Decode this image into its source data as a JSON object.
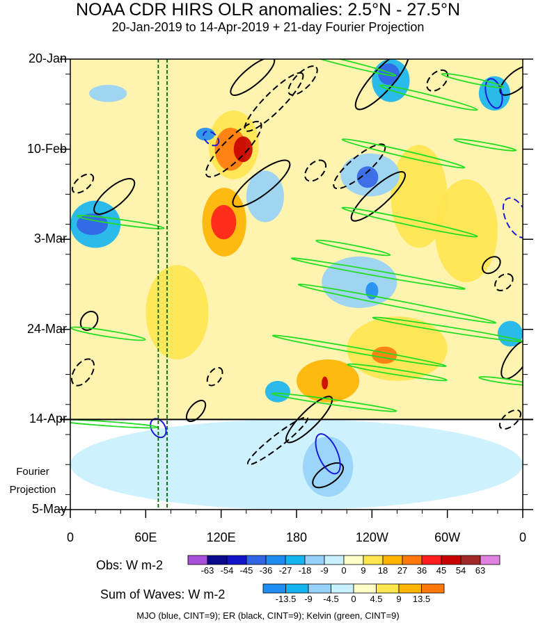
{
  "title": "NOAA CDR HIRS OLR anomalies: 2.5°N - 27.5°N",
  "subtitle": "20-Jan-2019 to 14-Apr-2019 + 21-day Fourier Projection",
  "projection_label_line1": "Fourier",
  "projection_label_line2": "Projection",
  "obs_label": "Obs: W m-2",
  "waves_label": "Sum of Waves: W m-2",
  "footnote": "MJO (blue, CINT=9); ER (black, CINT=9); Kelvin (green, CINT=9)",
  "colors": {
    "mjo": "#1a1ad8",
    "er": "#000000",
    "kelvin": "#22dd22",
    "guide_lines": "#006400"
  },
  "obs_colorbar": {
    "labels": [
      "-63",
      "-54",
      "-45",
      "-36",
      "-27",
      "-18",
      "-9",
      "0",
      "9",
      "18",
      "27",
      "36",
      "45",
      "54",
      "63"
    ],
    "colors": [
      "#a850d8",
      "#0a0a8c",
      "#1414c8",
      "#3264e6",
      "#1e8cf0",
      "#14b4f0",
      "#96d2fa",
      "#c8f0ff",
      "#ffffc8",
      "#ffe650",
      "#ffb400",
      "#ff780a",
      "#ff1e1e",
      "#c80000",
      "#a02828",
      "#e080e0"
    ]
  },
  "waves_colorbar": {
    "labels": [
      "-13.5",
      "-9",
      "-4.5",
      "0",
      "4.5",
      "9",
      "13.5"
    ],
    "colors": [
      "#1e8cf0",
      "#14b4f0",
      "#96d2fa",
      "#c8f0ff",
      "#ffffc8",
      "#ffe650",
      "#ffb400",
      "#ff780a"
    ]
  },
  "chart_data": {
    "type": "heatmap",
    "title": "NOAA CDR HIRS OLR anomalies: 2.5°N - 27.5°N",
    "subtitle": "20-Jan-2019 to 14-Apr-2019 + 21-day Fourier Projection",
    "x_ticks": [
      "0",
      "60E",
      "120E",
      "180",
      "120W",
      "60W",
      "0"
    ],
    "x_tick_longitudes": [
      0,
      60,
      120,
      180,
      240,
      300,
      360
    ],
    "y_ticks": [
      "20-Jan",
      "10-Feb",
      "3-Mar",
      "24-Mar",
      "14-Apr",
      "5-May"
    ],
    "y_tick_days": [
      0,
      21,
      42,
      63,
      84,
      105
    ],
    "xlim": [
      0,
      360
    ],
    "ylim_days": [
      0,
      105
    ],
    "projection_start_day": 84,
    "guide_longitudes": [
      70,
      77
    ],
    "obs_levels": [
      -63,
      -54,
      -45,
      -36,
      -27,
      -18,
      -9,
      0,
      9,
      18,
      27,
      36,
      45,
      54,
      63
    ],
    "wave_levels": [
      -13.5,
      -9,
      -4.5,
      0,
      4.5,
      9,
      13.5
    ],
    "anomaly_cells": [
      {
        "lon": [
          130,
          145
        ],
        "day": [
          18,
          24
        ],
        "v": 45
      },
      {
        "lon": [
          115,
          140
        ],
        "day": [
          16,
          26
        ],
        "v": 27
      },
      {
        "lon": [
          110,
          150
        ],
        "day": [
          12,
          28
        ],
        "v": 15
      },
      {
        "lon": [
          112,
          132
        ],
        "day": [
          34,
          42
        ],
        "v": 40
      },
      {
        "lon": [
          105,
          140
        ],
        "day": [
          30,
          46
        ],
        "v": 22
      },
      {
        "lon": [
          200,
          205
        ],
        "day": [
          74,
          77
        ],
        "v": 50
      },
      {
        "lon": [
          180,
          230
        ],
        "day": [
          70,
          80
        ],
        "v": 25
      },
      {
        "lon": [
          240,
          260
        ],
        "day": [
          67,
          71
        ],
        "v": 30
      },
      {
        "lon": [
          220,
          300
        ],
        "day": [
          60,
          75
        ],
        "v": 15
      },
      {
        "lon": [
          290,
          340
        ],
        "day": [
          28,
          52
        ],
        "v": 15
      },
      {
        "lon": [
          60,
          110
        ],
        "day": [
          48,
          70
        ],
        "v": 12
      },
      {
        "lon": [
          255,
          300
        ],
        "day": [
          20,
          44
        ],
        "v": 12
      },
      {
        "lon": [
          5,
          30
        ],
        "day": [
          36,
          41
        ],
        "v": -45
      },
      {
        "lon": [
          0,
          40
        ],
        "day": [
          33,
          44
        ],
        "v": -20
      },
      {
        "lon": [
          245,
          262
        ],
        "day": [
          1,
          6
        ],
        "v": -45
      },
      {
        "lon": [
          240,
          270
        ],
        "day": [
          0,
          10
        ],
        "v": -20
      },
      {
        "lon": [
          228,
          245
        ],
        "day": [
          25,
          30
        ],
        "v": -40
      },
      {
        "lon": [
          215,
          262
        ],
        "day": [
          22,
          32
        ],
        "v": -18
      },
      {
        "lon": [
          235,
          245
        ],
        "day": [
          52,
          56
        ],
        "v": -36
      },
      {
        "lon": [
          200,
          260
        ],
        "day": [
          46,
          58
        ],
        "v": -15
      },
      {
        "lon": [
          340,
          360
        ],
        "day": [
          61,
          67
        ],
        "v": -27
      },
      {
        "lon": [
          325,
          350
        ],
        "day": [
          4,
          12
        ],
        "v": -20
      },
      {
        "lon": [
          140,
          170
        ],
        "day": [
          26,
          38
        ],
        "v": -18
      },
      {
        "lon": [
          155,
          175
        ],
        "day": [
          75,
          80
        ],
        "v": -22
      },
      {
        "lon": [
          15,
          45
        ],
        "day": [
          6,
          10
        ],
        "v": -18
      },
      {
        "lon": [
          100,
          115
        ],
        "day": [
          16,
          19
        ],
        "v": -30
      },
      {
        "lon": [
          185,
          225
        ],
        "day": [
          88,
          102
        ],
        "v": -12
      },
      {
        "lon": [
          0,
          360
        ],
        "day": [
          84,
          105
        ],
        "v": -4
      }
    ],
    "mjo_contours": [
      {
        "cx": 112,
        "cy": 18.5,
        "rx": 7,
        "ry": 1.3,
        "a": 40,
        "dash": true
      },
      {
        "cx": 337,
        "cy": 8,
        "rx": 12,
        "ry": 1.8,
        "a": 75,
        "dash": false
      },
      {
        "cx": 355,
        "cy": 37,
        "rx": 17,
        "ry": 2.5,
        "a": 65,
        "dash": true
      },
      {
        "cx": 205,
        "cy": 92,
        "rx": 17,
        "ry": 2.2,
        "a": 66,
        "dash": false
      },
      {
        "cx": 70,
        "cy": 86,
        "rx": 8,
        "ry": 1.6,
        "a": 60,
        "dash": false
      }
    ],
    "er_contours": [
      {
        "cx": 152,
        "cy": 29,
        "rx": 28,
        "ry": 2.5,
        "a": -38,
        "dash": false
      },
      {
        "cx": 130,
        "cy": 21,
        "rx": 30,
        "ry": 2.5,
        "a": -45,
        "dash": true
      },
      {
        "cx": 162,
        "cy": 10,
        "rx": 32,
        "ry": 2.2,
        "a": -45,
        "dash": true
      },
      {
        "cx": 145,
        "cy": 4,
        "rx": 22,
        "ry": 2.0,
        "a": -40,
        "dash": false
      },
      {
        "cx": 35,
        "cy": 32,
        "rx": 20,
        "ry": 2.2,
        "a": -40,
        "dash": false
      },
      {
        "cx": 248,
        "cy": 5,
        "rx": 30,
        "ry": 2.5,
        "a": -48,
        "dash": false
      },
      {
        "cx": 230,
        "cy": 25,
        "rx": 26,
        "ry": 2.2,
        "a": -40,
        "dash": true
      },
      {
        "cx": 245,
        "cy": 32,
        "rx": 28,
        "ry": 2.2,
        "a": -42,
        "dash": false
      },
      {
        "cx": 195,
        "cy": 26,
        "rx": 10,
        "ry": 1.8,
        "a": -45,
        "dash": true
      },
      {
        "cx": 355,
        "cy": 5,
        "rx": 16,
        "ry": 2.0,
        "a": -40,
        "dash": false
      },
      {
        "cx": 292,
        "cy": 5,
        "rx": 10,
        "ry": 1.8,
        "a": -45,
        "dash": true
      },
      {
        "cx": 355,
        "cy": 70,
        "rx": 18,
        "ry": 2.2,
        "a": -55,
        "dash": false
      },
      {
        "cx": 335,
        "cy": 48,
        "rx": 8,
        "ry": 1.6,
        "a": -40,
        "dash": false
      },
      {
        "cx": 345,
        "cy": 52,
        "rx": 8,
        "ry": 1.6,
        "a": -40,
        "dash": true
      },
      {
        "cx": 190,
        "cy": 84,
        "rx": 25,
        "ry": 2.0,
        "a": -45,
        "dash": false
      },
      {
        "cx": 165,
        "cy": 89,
        "rx": 30,
        "ry": 1.4,
        "a": -38,
        "dash": true
      },
      {
        "cx": 205,
        "cy": 97,
        "rx": 14,
        "ry": 2.0,
        "a": -35,
        "dash": false
      },
      {
        "cx": 10,
        "cy": 73,
        "rx": 12,
        "ry": 2.0,
        "a": -55,
        "dash": true
      },
      {
        "cx": 15,
        "cy": 61,
        "rx": 8,
        "ry": 1.8,
        "a": -55,
        "dash": false
      },
      {
        "cx": 10,
        "cy": 29,
        "rx": 10,
        "ry": 1.5,
        "a": -40,
        "dash": true
      },
      {
        "cx": 100,
        "cy": 82,
        "rx": 10,
        "ry": 1.5,
        "a": -50,
        "dash": false
      },
      {
        "cx": 115,
        "cy": 74,
        "rx": 8,
        "ry": 1.4,
        "a": -55,
        "dash": true
      },
      {
        "cx": 185,
        "cy": 5,
        "rx": 15,
        "ry": 1.8,
        "a": -45,
        "dash": true
      },
      {
        "cx": 350,
        "cy": 84,
        "rx": 10,
        "ry": 1.5,
        "a": -40,
        "dash": true
      }
    ],
    "kelvin_contours": [
      {
        "cx": 265,
        "cy": 22,
        "rx": 50,
        "ry": 0.7,
        "a": 13
      },
      {
        "cx": 270,
        "cy": 38,
        "rx": 55,
        "ry": 0.7,
        "a": 12
      },
      {
        "cx": 260,
        "cy": 57,
        "rx": 80,
        "ry": 0.7,
        "a": 11
      },
      {
        "cx": 300,
        "cy": 63,
        "rx": 60,
        "ry": 0.6,
        "a": 9
      },
      {
        "cx": 245,
        "cy": 50,
        "rx": 70,
        "ry": 0.6,
        "a": 10
      },
      {
        "cx": 230,
        "cy": 68,
        "rx": 70,
        "ry": 0.6,
        "a": 10
      },
      {
        "cx": 260,
        "cy": 73,
        "rx": 40,
        "ry": 0.6,
        "a": 9
      },
      {
        "cx": 285,
        "cy": 9,
        "rx": 40,
        "ry": 0.7,
        "a": 14
      },
      {
        "cx": 320,
        "cy": 5,
        "rx": 25,
        "ry": 0.6,
        "a": 12
      },
      {
        "cx": 225,
        "cy": 44,
        "rx": 30,
        "ry": 0.6,
        "a": 11
      },
      {
        "cx": 30,
        "cy": 64,
        "rx": 30,
        "ry": 0.7,
        "a": 9
      },
      {
        "cx": 40,
        "cy": 38,
        "rx": 35,
        "ry": 0.6,
        "a": 8
      },
      {
        "cx": 220,
        "cy": 1,
        "rx": 40,
        "ry": 0.6,
        "a": 14
      },
      {
        "cx": 210,
        "cy": 80,
        "rx": 50,
        "ry": 0.6,
        "a": 8
      },
      {
        "cx": 30,
        "cy": 85,
        "rx": 40,
        "ry": 0.5,
        "a": 4
      },
      {
        "cx": 330,
        "cy": 20,
        "rx": 25,
        "ry": 0.5,
        "a": 10
      },
      {
        "cx": 345,
        "cy": 75,
        "rx": 20,
        "ry": 0.5,
        "a": 8
      }
    ]
  }
}
